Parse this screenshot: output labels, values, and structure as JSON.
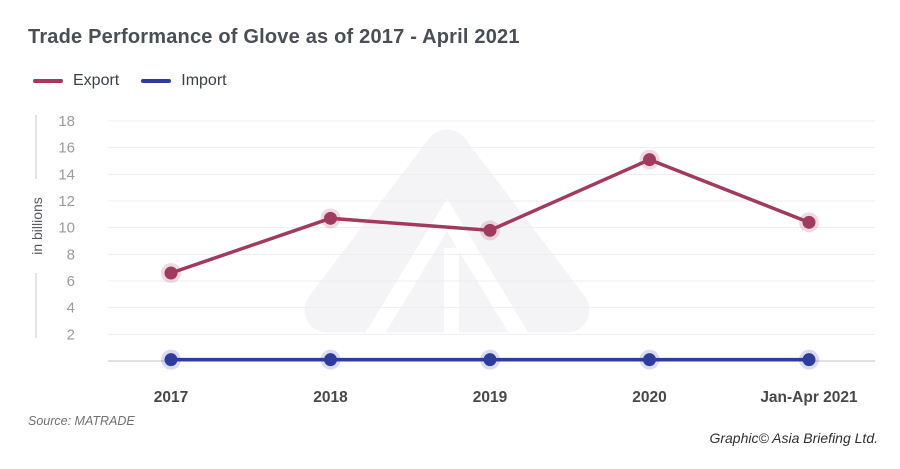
{
  "title": "Trade Performance of Glove as of 2017 - April 2021",
  "legend": [
    {
      "label": "Export",
      "color": "#a13a5e"
    },
    {
      "label": "Import",
      "color": "#2f3b9d"
    }
  ],
  "chart_data": {
    "type": "line",
    "categories": [
      "2017",
      "2018",
      "2019",
      "2020",
      "Jan-Apr 2021"
    ],
    "series": [
      {
        "name": "Export",
        "color": "#a13a5e",
        "values": [
          6.6,
          10.7,
          9.8,
          15.1,
          10.4
        ]
      },
      {
        "name": "Import",
        "color": "#2f3b9d",
        "values": [
          0.1,
          0.1,
          0.1,
          0.1,
          0.1
        ]
      }
    ],
    "title": "Trade Performance of Glove as of 2017 - April 2021",
    "xlabel": "",
    "ylabel": "in billions",
    "yticks": [
      2,
      4,
      6,
      8,
      10,
      12,
      14,
      16,
      18
    ],
    "ylim": [
      0,
      18
    ],
    "grid": true,
    "legend_position": "top-left"
  },
  "footer": {
    "source": "Source: MATRADE",
    "credit": "Graphic© Asia Briefing Ltd."
  },
  "colors": {
    "export": "#a13a5e",
    "import": "#2f3b9d",
    "grid": "#eeeef1",
    "baseline": "#e1e1e5",
    "axis_line": "#c9c9cd",
    "axis_text": "#9b9b9f",
    "xaxis_text": "#48484c",
    "ylabel_text": "#5a5a60",
    "title_text": "#4a4e55",
    "watermark": "#f4f4f6"
  },
  "watermark": "asia-briefing-logo"
}
